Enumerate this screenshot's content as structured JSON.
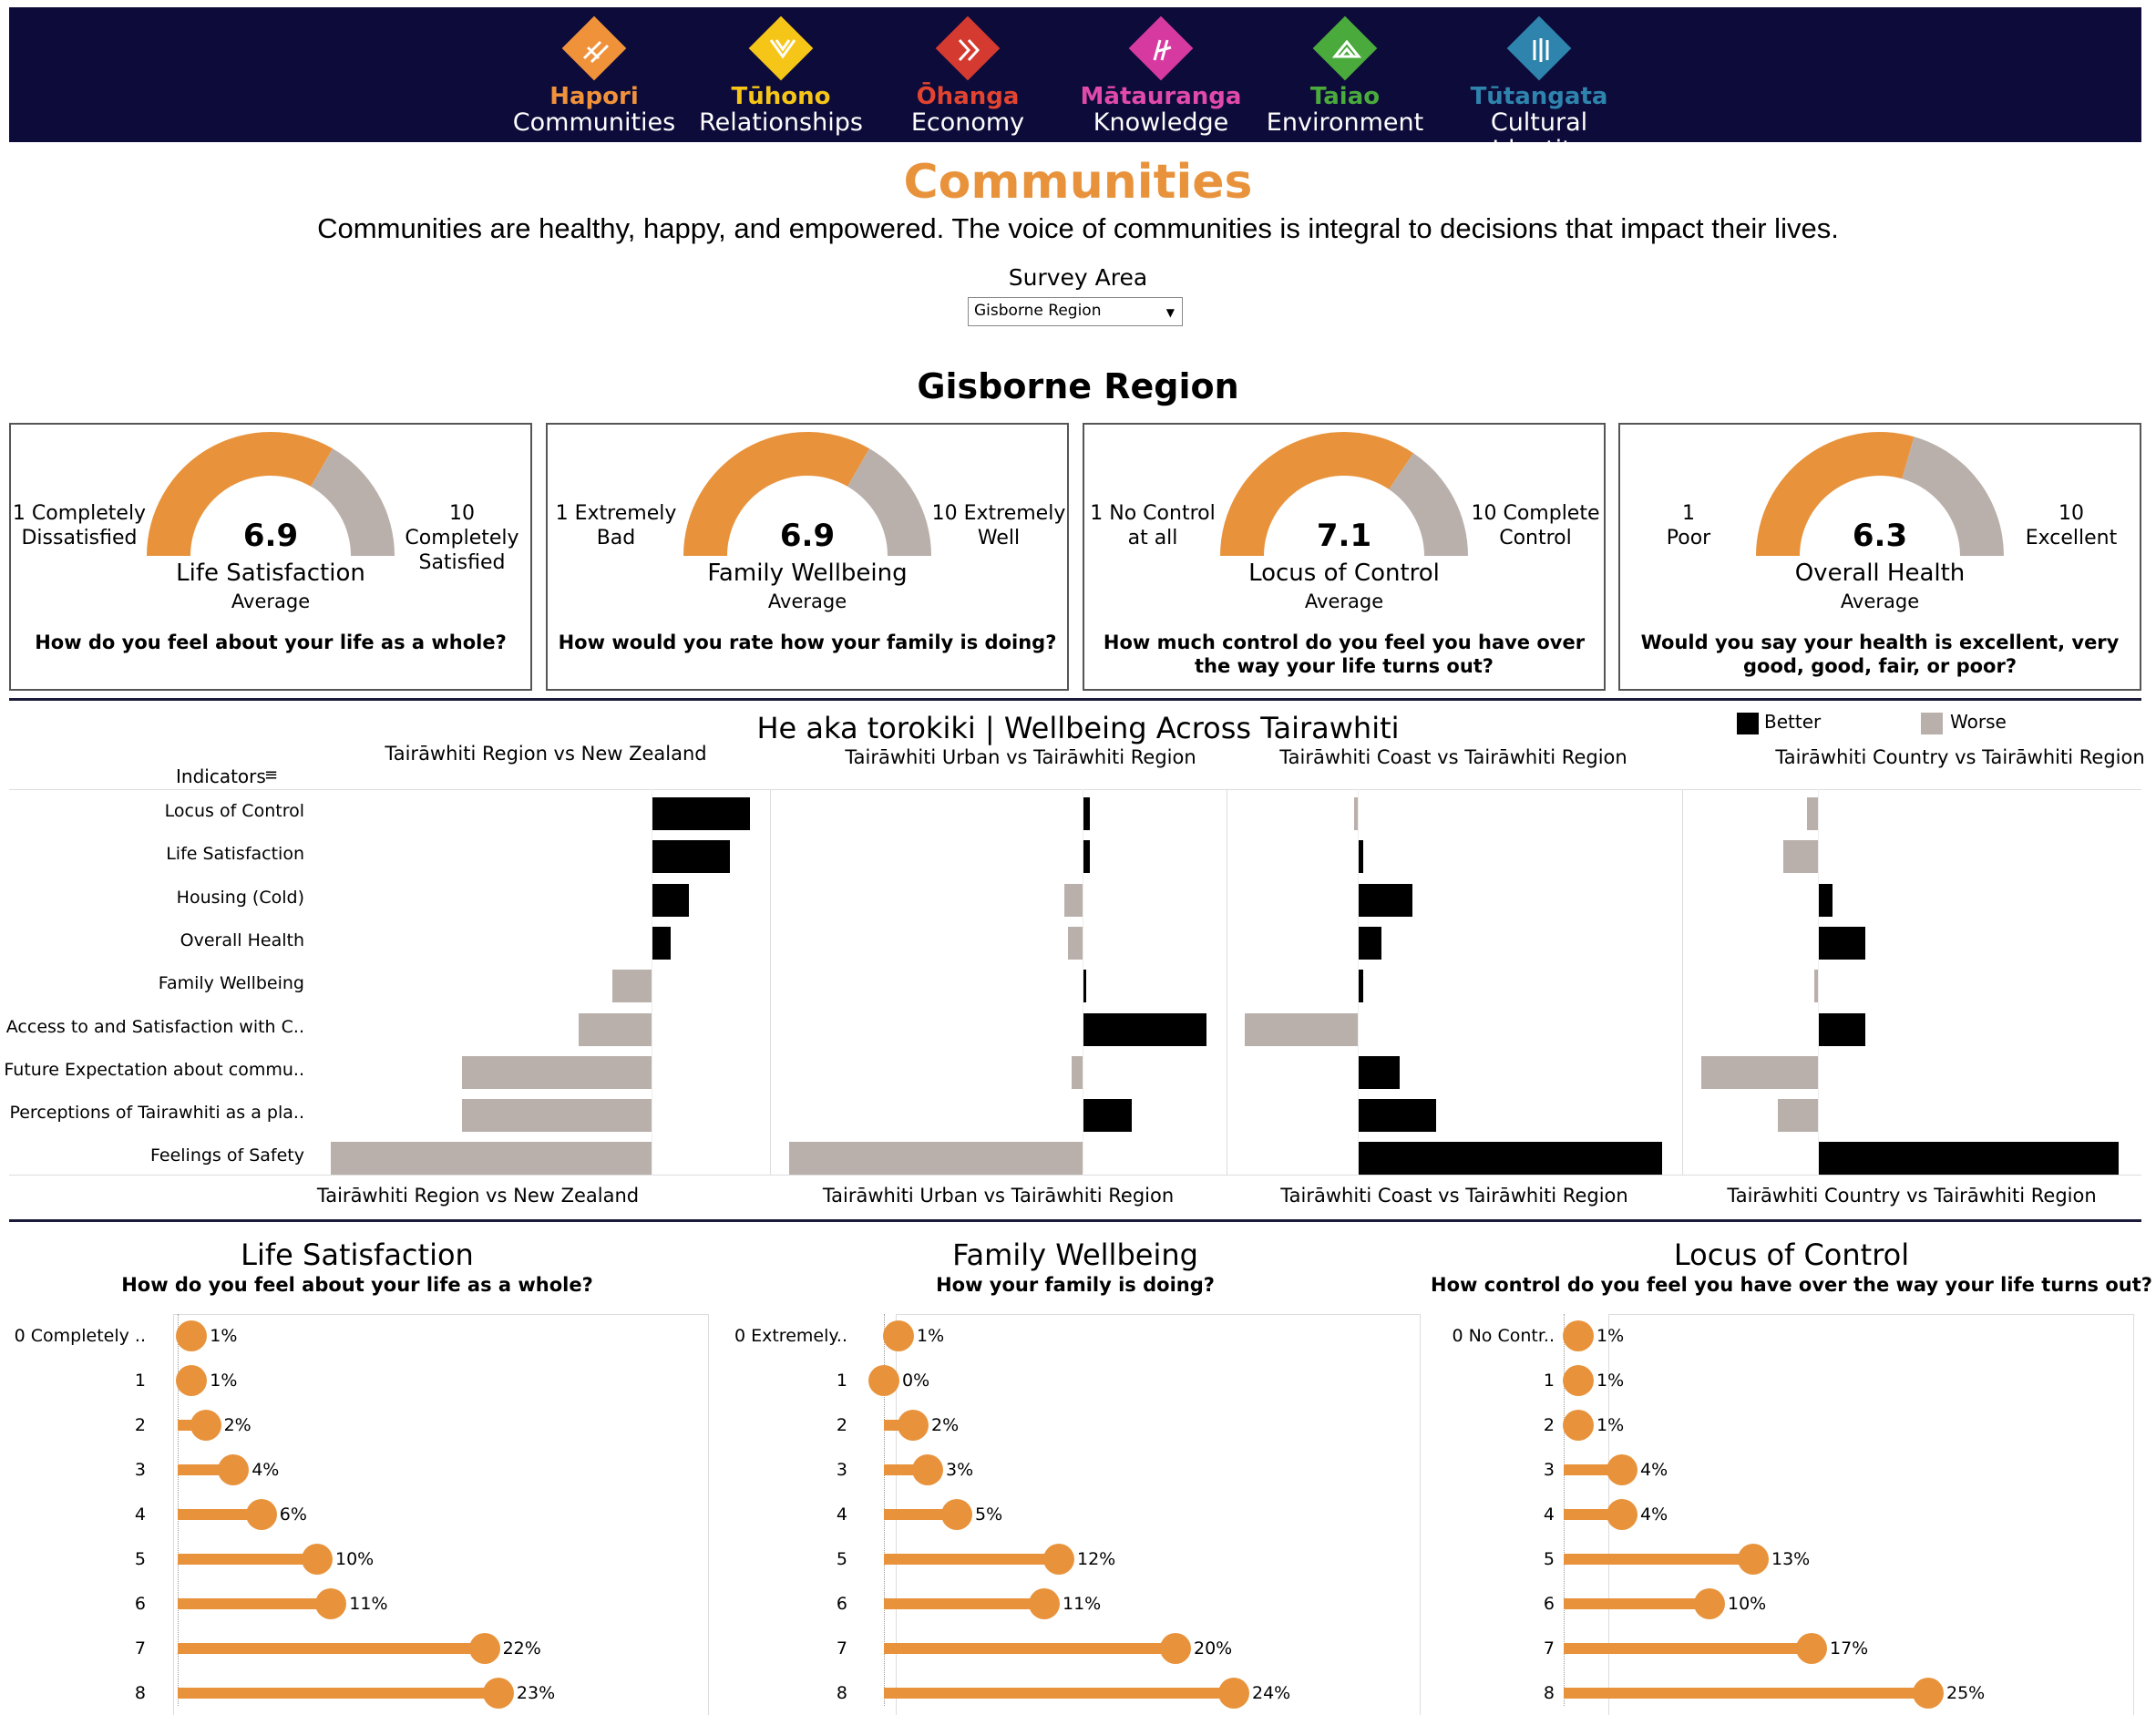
{
  "nav": [
    {
      "mao": "Hapori",
      "eng": "Communities",
      "color": "#f0923a",
      "mao_color": "#f0923a",
      "icon": "chevrons-icon"
    },
    {
      "mao": "Tūhono",
      "eng": "Relationships",
      "color": "#f5c518",
      "mao_color": "#f5c518",
      "icon": "v-weave-icon"
    },
    {
      "mao": "Ōhanga",
      "eng": "Economy",
      "color": "#d43a2f",
      "mao_color": "#e2442f",
      "icon": "arrows-icon"
    },
    {
      "mao": "Mātauranga",
      "eng": "Knowledge",
      "color": "#d63aa0",
      "mao_color": "#e14aa8",
      "icon": "book-icon"
    },
    {
      "mao": "Taiao",
      "eng": "Environment",
      "color": "#4aaa3c",
      "mao_color": "#4aaa3c",
      "icon": "mountain-icon"
    },
    {
      "mao": "Tūtangata",
      "eng": "Cultural Identity",
      "color": "#2e84ad",
      "mao_color": "#2e84ad",
      "icon": "pillars-icon"
    }
  ],
  "page": {
    "title": "Communities",
    "subtitle": "Communities are healthy, happy, and empowered. The voice of communities is integral to decisions that impact their lives.",
    "survey_label": "Survey Area",
    "survey_value": "Gisborne Region",
    "region": "Gisborne Region"
  },
  "cards": [
    {
      "value": "6.9",
      "frac": 0.667,
      "label": "Life Satisfaction",
      "avg": "Average",
      "lo1": "1 Completely",
      "lo2": "Dissatisfied",
      "hi1": "10 Completely",
      "hi2": "Satisfied",
      "q": "How do you feel about your life as a whole?"
    },
    {
      "value": "6.9",
      "frac": 0.667,
      "label": "Family Wellbeing",
      "avg": "Average",
      "lo1": "1 Extremely",
      "lo2": "Bad",
      "hi1": "10 Extremely",
      "hi2": "Well",
      "q": "How would you rate how your family is doing?"
    },
    {
      "value": "7.1",
      "frac": 0.689,
      "label": "Locus of Control",
      "avg": "Average",
      "lo1": "1 No Control",
      "lo2": "at all",
      "hi1": "10 Complete",
      "hi2": "Control",
      "q": "How much control do you feel you have over the way your life turns out?"
    },
    {
      "value": "6.3",
      "frac": 0.589,
      "label": "Overall Health",
      "avg": "Average",
      "lo1": "1",
      "lo2": "Poor",
      "hi1": "10",
      "hi2": "Excellent",
      "q": "Would you say your health is excellent, very good, good, fair, or poor?"
    }
  ],
  "wellbeing": {
    "title": "He aka torokiki | Wellbeing Across Tairawhiti",
    "legend_better": "Better",
    "legend_worse": "Worse",
    "color_better": "#000000",
    "color_worse": "#bab0ab",
    "indicators_header": "Indicators",
    "indicators": [
      "Locus of Control",
      "Life Satisfaction",
      "Housing (Cold)",
      "Overall Health",
      "Family Wellbeing",
      "Access to and Satisfaction with C..",
      "Future Expectation about commu..",
      "Perceptions of Tairawhiti as a pla..",
      "Feelings of Safety"
    ],
    "panels": [
      {
        "title": "Tairāwhiti Region vs New Zealand",
        "values": [
          0.108,
          0.086,
          0.041,
          0.021,
          -0.043,
          -0.08,
          -0.208,
          -0.208,
          -0.352
        ]
      },
      {
        "title": "Tairāwhiti Urban vs Tairāwhiti Region",
        "values": [
          0.008,
          0.008,
          -0.02,
          -0.016,
          0.004,
          0.136,
          -0.012,
          0.054,
          -0.322
        ]
      },
      {
        "title": "Tairāwhiti Coast vs Tairāwhiti Region",
        "values": [
          -0.004,
          0.006,
          0.06,
          0.026,
          0.006,
          -0.124,
          0.046,
          0.086,
          0.334
        ]
      },
      {
        "title": "Tairāwhiti Country vs Tairāwhiti Region",
        "values": [
          -0.012,
          -0.038,
          0.016,
          0.052,
          -0.004,
          0.052,
          -0.128,
          -0.044,
          0.33
        ]
      }
    ]
  },
  "lollipops": [
    {
      "title": "Life Satisfaction",
      "sub": "How do you feel about your life as a whole?",
      "cats": [
        "0  Completely ..",
        "1",
        "2",
        "3",
        "4",
        "5",
        "6",
        "7",
        "8"
      ],
      "values": [
        1,
        1,
        2,
        4,
        6,
        10,
        11,
        22,
        23
      ]
    },
    {
      "title": "Family Wellbeing",
      "sub": "How your family is doing?",
      "cats": [
        "0 Extremely..",
        "1",
        "2",
        "3",
        "4",
        "5",
        "6",
        "7",
        "8"
      ],
      "values": [
        1,
        0,
        2,
        3,
        5,
        12,
        11,
        20,
        24
      ]
    },
    {
      "title": "Locus of Control",
      "sub": "How control do you feel you have over the way your life turns out?",
      "cats": [
        "0 No Contr..",
        "1",
        "2",
        "3",
        "4",
        "5",
        "6",
        "7",
        "8"
      ],
      "values": [
        1,
        1,
        1,
        4,
        4,
        13,
        10,
        17,
        25
      ]
    }
  ],
  "accent": "#e8933c"
}
